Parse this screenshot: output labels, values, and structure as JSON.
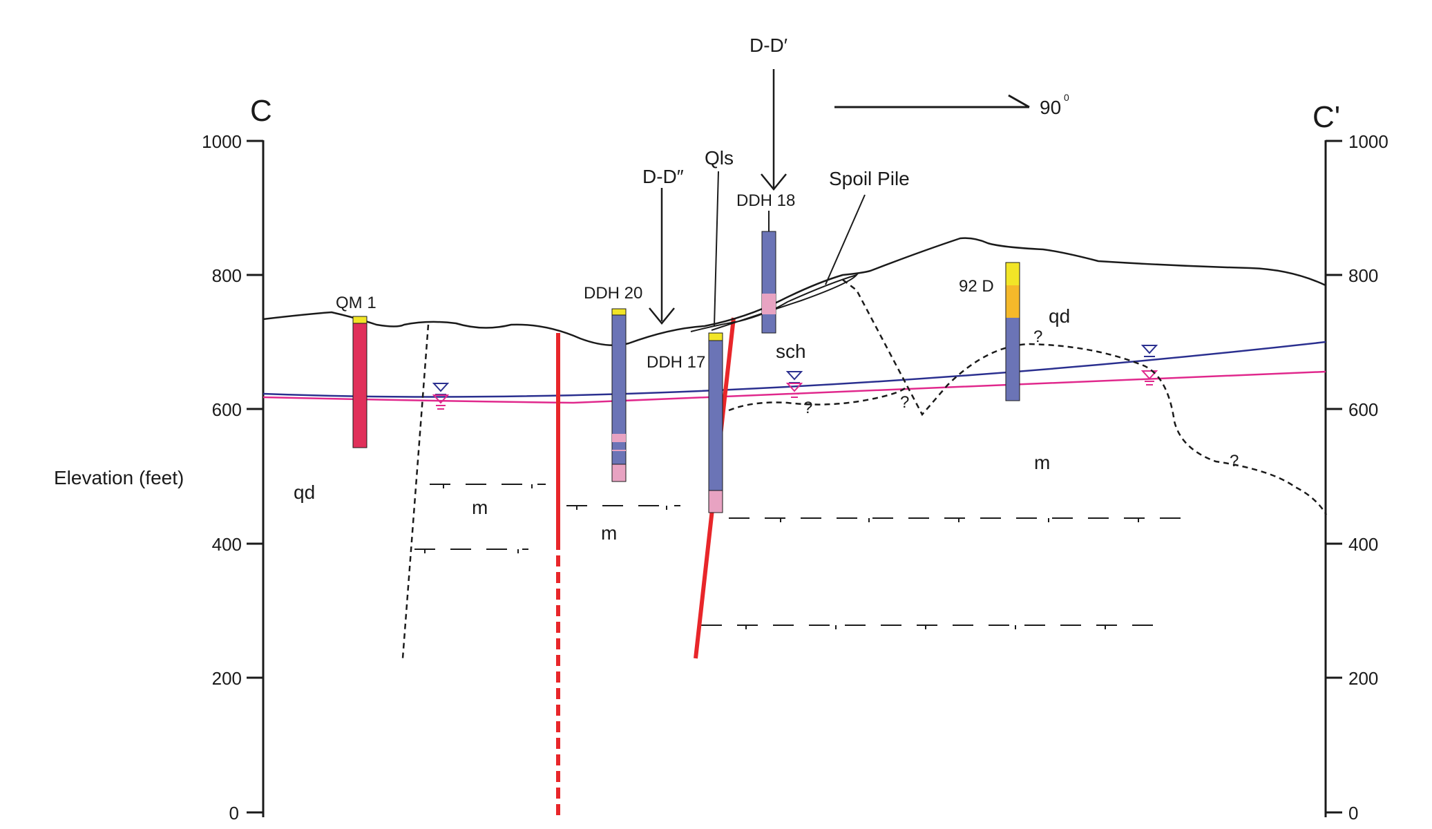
{
  "section": {
    "left_label": "C",
    "right_label": "C'",
    "axis_title": "Elevation (feet)",
    "ticks": [
      "0",
      "200",
      "400",
      "600",
      "800",
      "1000"
    ],
    "azimuth": "90",
    "azimuth_sup": "0"
  },
  "drill_holes": {
    "qm1": "QM 1",
    "ddh20": "DDH 20",
    "ddh17": "DDH 17",
    "ddh18": "DDH 18",
    "d92": "92 D"
  },
  "callouts": {
    "dd_double_prime": "D-D″",
    "dd_prime": "D-D′",
    "qls": "Qls",
    "spoil": "Spoil Pile"
  },
  "units": {
    "qd": "qd",
    "m": "m",
    "sch": "sch",
    "unknown": "?"
  },
  "colors": {
    "ground_surface": "#1a1a1a",
    "water_table_blue": "#2a2f8f",
    "water_table_pink": "#e0288c",
    "fault_red": "#e8262a",
    "hole_blue": "#6b74b6",
    "hole_pink": "#e8a3c2",
    "hole_yellow": "#f2e527",
    "hole_orange": "#f5b92a",
    "qm1_red": "#e0305a"
  }
}
